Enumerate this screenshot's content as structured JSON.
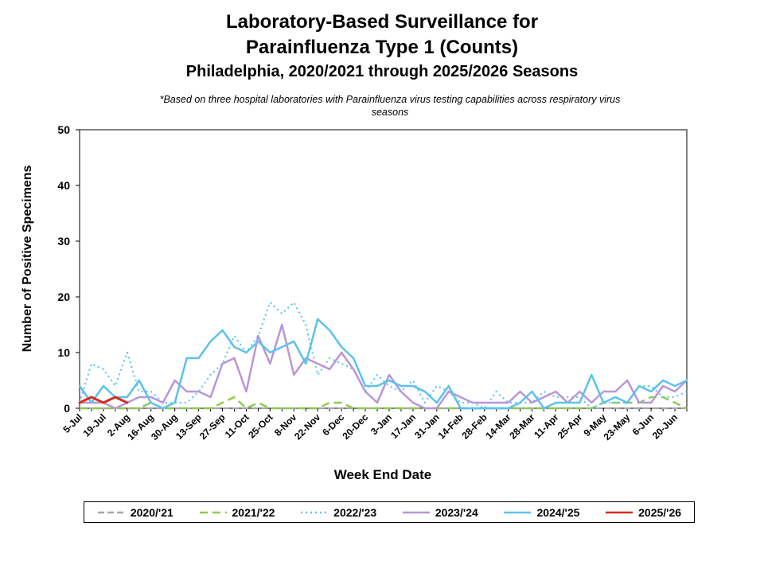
{
  "title_line1": "Laboratory-Based Surveillance for",
  "title_line2": "Parainfluenza Type 1 (Counts)",
  "subtitle": "Philadelphia, 2020/2021 through 2025/2026 Seasons",
  "note_line1": "*Based on three hospital laboratories with Parainfluenza virus testing capabilities across respiratory virus",
  "note_line2": "seasons",
  "chart_data": {
    "type": "line",
    "title": "Laboratory-Based Surveillance for Parainfluenza Type 1 (Counts)",
    "subtitle": "Philadelphia, 2020/2021 through 2025/2026 Seasons",
    "xlabel": "Week End Date",
    "ylabel": "Number of Positive Specimens",
    "ylim": [
      0,
      50
    ],
    "yticks": [
      0,
      10,
      20,
      30,
      40,
      50
    ],
    "grid": false,
    "legend_position": "bottom",
    "x_tick_labels": [
      "5-Jul",
      "19-Jul",
      "2-Aug",
      "16-Aug",
      "30-Aug",
      "13-Sep",
      "27-Sep",
      "11-Oct",
      "25-Oct",
      "8-Nov",
      "22-Nov",
      "6-Dec",
      "20-Dec",
      "3-Jan",
      "17-Jan",
      "31-Jan",
      "14-Feb",
      "28-Feb",
      "14-Mar",
      "28-Mar",
      "11-Apr",
      "25-Apr",
      "9-May",
      "23-May",
      "6-Jun",
      "20-Jun"
    ],
    "n_weeks": 52,
    "series": [
      {
        "name": "2020/'21",
        "color": "#a6a6a6",
        "dash": "8,4",
        "width": 2.2,
        "values": [
          0,
          0,
          0,
          0,
          0,
          0,
          0,
          0,
          0,
          0,
          0,
          0,
          0,
          0,
          0,
          0,
          0,
          0,
          0,
          0,
          0,
          0,
          0,
          0,
          0,
          0,
          0,
          0,
          0,
          0,
          0,
          0,
          0,
          0,
          0,
          0,
          0,
          0,
          0,
          0,
          0,
          0,
          0,
          0,
          0,
          0,
          0,
          0,
          0,
          0,
          0,
          0
        ]
      },
      {
        "name": "2021/'22",
        "color": "#8ccc4d",
        "dash": "10,6",
        "width": 2.5,
        "values": [
          0,
          0,
          0,
          0,
          0,
          0,
          1,
          0,
          0,
          0,
          0,
          0,
          1,
          2,
          0,
          1,
          0,
          0,
          0,
          0,
          0,
          1,
          1,
          0,
          0,
          0,
          0,
          0,
          0,
          0,
          0,
          0,
          0,
          0,
          0,
          0,
          0,
          0,
          0,
          0,
          0,
          0,
          0,
          0,
          1,
          1,
          1,
          1,
          2,
          2,
          1,
          0
        ]
      },
      {
        "name": "2022/'23",
        "color": "#63c3ee",
        "dash": "2,4",
        "width": 2.2,
        "values": [
          1,
          8,
          7,
          4,
          10,
          3,
          3,
          1,
          1,
          1,
          3,
          6,
          8,
          13,
          10,
          13,
          19,
          17,
          19,
          15,
          6,
          9,
          8,
          7,
          3,
          6,
          4,
          3,
          5,
          1,
          4,
          3,
          1,
          1,
          0,
          3,
          1,
          1,
          1,
          3,
          2,
          2,
          2,
          0,
          1,
          1,
          1,
          4,
          4,
          2,
          2,
          3
        ]
      },
      {
        "name": "2023/'24",
        "color": "#b996d8",
        "dash": "",
        "width": 2.5,
        "values": [
          1,
          1,
          1,
          0,
          1,
          2,
          2,
          1,
          5,
          3,
          3,
          2,
          8,
          9,
          3,
          13,
          8,
          15,
          6,
          9,
          8,
          7,
          10,
          7,
          3,
          1,
          6,
          3,
          1,
          0,
          0,
          3,
          2,
          1,
          1,
          1,
          1,
          3,
          1,
          2,
          3,
          1,
          3,
          1,
          3,
          3,
          5,
          1,
          1,
          4,
          3,
          5
        ]
      },
      {
        "name": "2024/'25",
        "color": "#5bc2ee",
        "dash": "",
        "width": 2.5,
        "values": [
          4,
          1,
          4,
          2,
          2,
          5,
          1,
          0,
          1,
          9,
          9,
          12,
          14,
          11,
          10,
          12,
          10,
          11,
          12,
          8,
          16,
          14,
          11,
          9,
          4,
          4,
          5,
          4,
          4,
          3,
          1,
          4,
          0,
          0,
          0,
          0,
          0,
          1,
          3,
          0,
          1,
          1,
          1,
          6,
          1,
          2,
          1,
          4,
          3,
          5,
          4,
          5
        ]
      },
      {
        "name": "2025/'26",
        "color": "#d62d20",
        "dash": "",
        "width": 3,
        "values": [
          1,
          2,
          1,
          2,
          1
        ]
      }
    ]
  },
  "legend": [
    {
      "name": "2020/'21",
      "color": "#a6a6a6",
      "dash": "8,4"
    },
    {
      "name": "2021/'22",
      "color": "#8ccc4d",
      "dash": "10,6"
    },
    {
      "name": "2022/'23",
      "color": "#63c3ee",
      "dash": "2,4"
    },
    {
      "name": "2023/'24",
      "color": "#b996d8",
      "dash": ""
    },
    {
      "name": "2024/'25",
      "color": "#5bc2ee",
      "dash": ""
    },
    {
      "name": "2025/'26",
      "color": "#d62d20",
      "dash": ""
    }
  ]
}
